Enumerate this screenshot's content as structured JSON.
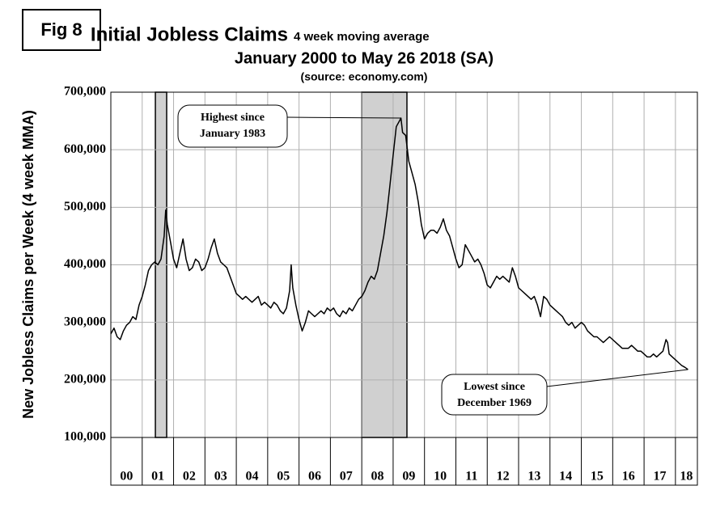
{
  "chart_data": {
    "type": "line",
    "figure_label": "Fig 8",
    "title": "Initial Jobless Claims",
    "title_note": "4 week moving average",
    "subtitle": "January 2000 to May 26 2018 (SA)",
    "source": "(source: economy.com)",
    "y_label": "New Jobless Claims per Week (4 week MMA)",
    "xlim": [
      2000,
      2018.7
    ],
    "ylim": [
      100000,
      700000
    ],
    "grid": true,
    "xticks": [
      {
        "value": 2000,
        "label": "00"
      },
      {
        "value": 2001,
        "label": "01"
      },
      {
        "value": 2002,
        "label": "02"
      },
      {
        "value": 2003,
        "label": "03"
      },
      {
        "value": 2004,
        "label": "04"
      },
      {
        "value": 2005,
        "label": "05"
      },
      {
        "value": 2006,
        "label": "06"
      },
      {
        "value": 2007,
        "label": "07"
      },
      {
        "value": 2008,
        "label": "08"
      },
      {
        "value": 2009,
        "label": "09"
      },
      {
        "value": 2010,
        "label": "10"
      },
      {
        "value": 2011,
        "label": "11"
      },
      {
        "value": 2012,
        "label": "12"
      },
      {
        "value": 2013,
        "label": "13"
      },
      {
        "value": 2014,
        "label": "14"
      },
      {
        "value": 2015,
        "label": "15"
      },
      {
        "value": 2016,
        "label": "16"
      },
      {
        "value": 2017,
        "label": "17"
      },
      {
        "value": 2018,
        "label": "18"
      }
    ],
    "yticks": [
      {
        "value": 100000,
        "label": "100,000"
      },
      {
        "value": 200000,
        "label": "200,000"
      },
      {
        "value": 300000,
        "label": "300,000"
      },
      {
        "value": 400000,
        "label": "400,000"
      },
      {
        "value": 500000,
        "label": "500,000"
      },
      {
        "value": 600000,
        "label": "600,000"
      },
      {
        "value": 700000,
        "label": "700,000"
      }
    ],
    "shaded_regions": [
      {
        "start": 2001.42,
        "end": 2001.78
      },
      {
        "start": 2008.0,
        "end": 2009.44
      }
    ],
    "annotations": [
      {
        "lines": [
          "Highest since",
          "January 1983"
        ],
        "x": 2009.25,
        "y": 655000
      },
      {
        "lines": [
          "Lowest since",
          "December 1969"
        ],
        "x": 2018.4,
        "y": 218000
      }
    ],
    "series": [
      {
        "color": "#000000",
        "x": [
          2000.0,
          2000.1,
          2000.2,
          2000.3,
          2000.4,
          2000.5,
          2000.6,
          2000.7,
          2000.8,
          2000.9,
          2001.0,
          2001.1,
          2001.2,
          2001.3,
          2001.4,
          2001.5,
          2001.6,
          2001.7,
          2001.75,
          2001.8,
          2001.9,
          2002.0,
          2002.1,
          2002.2,
          2002.3,
          2002.4,
          2002.5,
          2002.6,
          2002.7,
          2002.8,
          2002.9,
          2003.0,
          2003.1,
          2003.2,
          2003.3,
          2003.4,
          2003.5,
          2003.6,
          2003.7,
          2003.8,
          2003.9,
          2004.0,
          2004.1,
          2004.2,
          2004.3,
          2004.4,
          2004.5,
          2004.6,
          2004.7,
          2004.8,
          2004.9,
          2005.0,
          2005.1,
          2005.2,
          2005.3,
          2005.4,
          2005.5,
          2005.6,
          2005.7,
          2005.75,
          2005.8,
          2005.9,
          2006.0,
          2006.1,
          2006.2,
          2006.3,
          2006.4,
          2006.5,
          2006.6,
          2006.7,
          2006.8,
          2006.9,
          2007.0,
          2007.1,
          2007.2,
          2007.3,
          2007.4,
          2007.5,
          2007.6,
          2007.7,
          2007.8,
          2007.9,
          2008.0,
          2008.1,
          2008.2,
          2008.3,
          2008.4,
          2008.5,
          2008.6,
          2008.7,
          2008.8,
          2008.9,
          2009.0,
          2009.1,
          2009.2,
          2009.25,
          2009.3,
          2009.4,
          2009.5,
          2009.6,
          2009.7,
          2009.8,
          2009.9,
          2010.0,
          2010.1,
          2010.2,
          2010.3,
          2010.4,
          2010.5,
          2010.6,
          2010.7,
          2010.8,
          2010.9,
          2011.0,
          2011.1,
          2011.2,
          2011.3,
          2011.4,
          2011.5,
          2011.6,
          2011.7,
          2011.8,
          2011.9,
          2012.0,
          2012.1,
          2012.2,
          2012.3,
          2012.4,
          2012.5,
          2012.6,
          2012.7,
          2012.8,
          2012.9,
          2013.0,
          2013.1,
          2013.2,
          2013.3,
          2013.4,
          2013.5,
          2013.6,
          2013.7,
          2013.8,
          2013.9,
          2014.0,
          2014.1,
          2014.2,
          2014.3,
          2014.4,
          2014.5,
          2014.6,
          2014.7,
          2014.8,
          2014.9,
          2015.0,
          2015.1,
          2015.2,
          2015.3,
          2015.4,
          2015.5,
          2015.6,
          2015.7,
          2015.8,
          2015.9,
          2016.0,
          2016.1,
          2016.2,
          2016.3,
          2016.4,
          2016.5,
          2016.6,
          2016.7,
          2016.8,
          2016.9,
          2017.0,
          2017.1,
          2017.2,
          2017.3,
          2017.4,
          2017.5,
          2017.6,
          2017.7,
          2017.75,
          2017.8,
          2017.9,
          2018.0,
          2018.1,
          2018.2,
          2018.3,
          2018.4
        ],
        "values": [
          280000,
          290000,
          275000,
          270000,
          285000,
          295000,
          300000,
          310000,
          305000,
          330000,
          345000,
          365000,
          390000,
          400000,
          405000,
          400000,
          410000,
          450000,
          495000,
          470000,
          440000,
          410000,
          395000,
          420000,
          445000,
          410000,
          390000,
          395000,
          410000,
          405000,
          390000,
          395000,
          410000,
          430000,
          445000,
          420000,
          405000,
          400000,
          395000,
          380000,
          365000,
          350000,
          345000,
          340000,
          345000,
          340000,
          335000,
          340000,
          345000,
          330000,
          335000,
          330000,
          325000,
          335000,
          330000,
          320000,
          315000,
          325000,
          355000,
          400000,
          360000,
          330000,
          305000,
          285000,
          300000,
          320000,
          315000,
          310000,
          315000,
          320000,
          315000,
          325000,
          320000,
          325000,
          315000,
          310000,
          320000,
          315000,
          325000,
          320000,
          330000,
          340000,
          345000,
          355000,
          370000,
          380000,
          375000,
          390000,
          420000,
          450000,
          490000,
          540000,
          590000,
          640000,
          650000,
          655000,
          630000,
          625000,
          580000,
          560000,
          540000,
          510000,
          470000,
          445000,
          455000,
          460000,
          460000,
          455000,
          465000,
          480000,
          460000,
          450000,
          430000,
          410000,
          395000,
          400000,
          435000,
          425000,
          415000,
          405000,
          410000,
          400000,
          385000,
          365000,
          360000,
          370000,
          380000,
          375000,
          380000,
          375000,
          370000,
          395000,
          380000,
          360000,
          355000,
          350000,
          345000,
          340000,
          345000,
          330000,
          310000,
          345000,
          340000,
          330000,
          325000,
          320000,
          315000,
          310000,
          300000,
          295000,
          300000,
          290000,
          295000,
          300000,
          295000,
          285000,
          280000,
          275000,
          275000,
          270000,
          265000,
          270000,
          275000,
          270000,
          265000,
          260000,
          255000,
          255000,
          255000,
          260000,
          255000,
          250000,
          250000,
          245000,
          240000,
          240000,
          245000,
          240000,
          245000,
          250000,
          270000,
          265000,
          245000,
          240000,
          235000,
          230000,
          225000,
          222000,
          218000
        ]
      }
    ]
  }
}
